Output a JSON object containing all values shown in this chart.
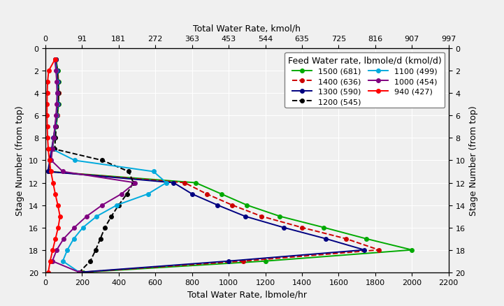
{
  "title_legend": "Feed Water rate, lbmole/d (kmol/d)",
  "xlabel_bottom": "Total Water Rate, lbmole/hr",
  "xlabel_top": "Total Water Rate, kmol/h",
  "ylabel": "Stage Number (from top)",
  "xlim": [
    0,
    2200
  ],
  "ylim_bottom": 20,
  "ylim_top": 0,
  "xticks_bottom": [
    0,
    200,
    400,
    600,
    800,
    1000,
    1200,
    1400,
    1600,
    1800,
    2000,
    2200
  ],
  "xticks_top_pos": [
    0,
    200,
    400,
    600,
    800,
    1000,
    1200,
    1400,
    1600,
    1800,
    2000,
    2200
  ],
  "xticks_top_labels": [
    "0",
    "91",
    "181",
    "272",
    "363",
    "453",
    "544",
    "635",
    "725",
    "816",
    "907",
    "997"
  ],
  "yticks": [
    0,
    2,
    4,
    6,
    8,
    10,
    12,
    14,
    16,
    18,
    20
  ],
  "bg_color": "#f0f0f0",
  "series": [
    {
      "label": "1500 (681)",
      "color": "#00AA00",
      "linestyle": "-",
      "dashed": false,
      "stages": [
        1,
        2,
        3,
        4,
        5,
        6,
        7,
        8,
        9,
        10,
        11,
        12,
        13,
        14,
        15,
        16,
        17,
        18,
        19,
        20
      ],
      "values": [
        58,
        68,
        72,
        74,
        72,
        66,
        58,
        48,
        38,
        28,
        18,
        820,
        960,
        1100,
        1280,
        1520,
        1750,
        2000,
        1200,
        205
      ]
    },
    {
      "label": "1400 (636)",
      "color": "#CC0000",
      "linestyle": "--",
      "dashed": true,
      "stages": [
        1,
        2,
        3,
        4,
        5,
        6,
        7,
        8,
        9,
        10,
        11,
        12,
        13,
        14,
        15,
        16,
        17,
        18,
        19,
        20
      ],
      "values": [
        57,
        66,
        70,
        72,
        70,
        64,
        56,
        46,
        36,
        26,
        16,
        760,
        880,
        1020,
        1180,
        1400,
        1640,
        1820,
        1080,
        195
      ]
    },
    {
      "label": "1300 (590)",
      "color": "#000080",
      "linestyle": "-",
      "dashed": false,
      "stages": [
        1,
        2,
        3,
        4,
        5,
        6,
        7,
        8,
        9,
        10,
        11,
        12,
        13,
        14,
        15,
        16,
        17,
        18,
        19,
        20
      ],
      "values": [
        56,
        64,
        68,
        70,
        68,
        62,
        54,
        44,
        34,
        24,
        14,
        700,
        800,
        940,
        1090,
        1300,
        1530,
        1740,
        1000,
        185
      ]
    },
    {
      "label": "1200 (545)",
      "color": "#000000",
      "linestyle": "--",
      "dashed": true,
      "stages": [
        1,
        2,
        3,
        4,
        5,
        6,
        7,
        8,
        9,
        10,
        11,
        12,
        13,
        14,
        15,
        16,
        17,
        18,
        19,
        20
      ],
      "values": [
        55,
        62,
        67,
        69,
        67,
        63,
        59,
        55,
        51,
        310,
        455,
        480,
        445,
        400,
        360,
        325,
        300,
        275,
        245,
        185
      ]
    },
    {
      "label": "1100 (499)",
      "color": "#00AADD",
      "linestyle": "-",
      "dashed": false,
      "stages": [
        1,
        2,
        3,
        4,
        5,
        6,
        7,
        8,
        9,
        10,
        11,
        12,
        13,
        14,
        15,
        16,
        17,
        18,
        19,
        20
      ],
      "values": [
        54,
        60,
        64,
        66,
        64,
        60,
        54,
        46,
        38,
        160,
        590,
        660,
        560,
        390,
        280,
        205,
        155,
        120,
        95,
        185
      ]
    },
    {
      "label": "1000 (454)",
      "color": "#800080",
      "linestyle": "-",
      "dashed": false,
      "stages": [
        1,
        2,
        3,
        4,
        5,
        6,
        7,
        8,
        9,
        10,
        11,
        12,
        13,
        14,
        15,
        16,
        17,
        18,
        19,
        20
      ],
      "values": [
        52,
        58,
        62,
        64,
        62,
        58,
        52,
        45,
        38,
        32,
        95,
        490,
        415,
        310,
        225,
        158,
        100,
        62,
        38,
        185
      ]
    },
    {
      "label": "940 (427)",
      "color": "#FF0000",
      "linestyle": "-",
      "dashed": false,
      "stages": [
        1,
        2,
        3,
        4,
        5,
        6,
        7,
        8,
        9,
        10,
        11,
        12,
        13,
        14,
        15,
        16,
        17,
        18,
        19,
        20
      ],
      "values": [
        52,
        18,
        12,
        10,
        9,
        9,
        10,
        12,
        16,
        22,
        30,
        42,
        54,
        68,
        80,
        70,
        55,
        40,
        26,
        16
      ]
    }
  ],
  "legend_ncol": 2,
  "legend_title_fontsize": 9,
  "legend_fontsize": 8
}
